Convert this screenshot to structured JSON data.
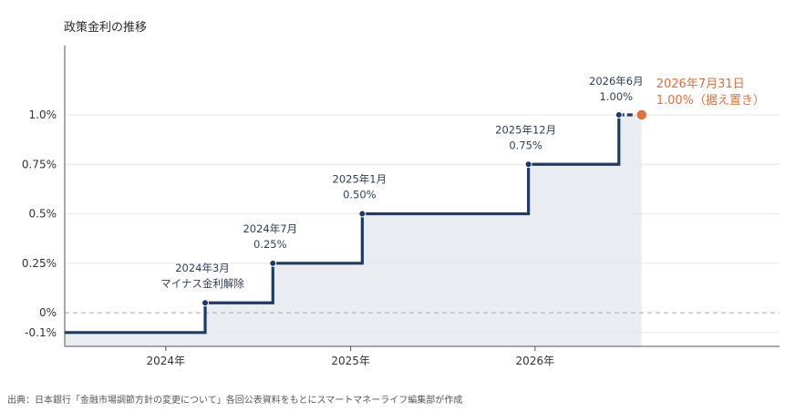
{
  "title": "政策金利の推移",
  "footer": "出典：日本銀行「金融市場調節方針の変更について」各回公表資料をもとにスマートマネーライフ編集部が作成",
  "colors": {
    "line": "#1f3a66",
    "fill": "#e9edf2",
    "highlight": "#e2703a",
    "zero_line": "#aaaaaa",
    "grid": "#e6e6e6",
    "axis": "#555555"
  },
  "chart_data": {
    "type": "line",
    "step": true,
    "title": "政策金利の推移",
    "xlabel": "",
    "ylabel": "",
    "y_ticks": [
      {
        "value": -0.1,
        "label": "-0.1%"
      },
      {
        "value": 0,
        "label": "0%"
      },
      {
        "value": 0.25,
        "label": "0.25%"
      },
      {
        "value": 0.5,
        "label": "0.5%"
      },
      {
        "value": 0.75,
        "label": "0.75%"
      },
      {
        "value": 1.0,
        "label": "1.0%"
      }
    ],
    "x_ticks": [
      {
        "value": "2024-01-01",
        "label": "2024年"
      },
      {
        "value": "2025-01-01",
        "label": "2025年"
      },
      {
        "value": "2026-01-01",
        "label": "2026年"
      }
    ],
    "xlim": [
      "2023-06-15",
      "2027-04-30"
    ],
    "ylim": [
      -0.17,
      1.35
    ],
    "grid": true,
    "series": [
      {
        "points": [
          {
            "x": "2023-06-15",
            "y": -0.1
          },
          {
            "x": "2024-03-19",
            "y": 0.05,
            "label_lines": [
              "2024年3月",
              "マイナス金利解除"
            ]
          },
          {
            "x": "2024-07-31",
            "y": 0.25,
            "label_lines": [
              "2024年7月",
              "0.25%"
            ]
          },
          {
            "x": "2025-01-24",
            "y": 0.5,
            "label_lines": [
              "2025年1月",
              "0.50%"
            ]
          },
          {
            "x": "2025-12-19",
            "y": 0.75,
            "label_lines": [
              "2025年12月",
              "0.75%"
            ]
          },
          {
            "x": "2026-06-16",
            "y": 1.0,
            "label_lines": [
              "2026年6月",
              "1.00%"
            ]
          },
          {
            "x": "2026-07-31",
            "y": 1.0,
            "label_lines": [
              "2026年7月31日",
              "1.00%（据え置き）"
            ],
            "highlight": true
          }
        ]
      }
    ]
  }
}
